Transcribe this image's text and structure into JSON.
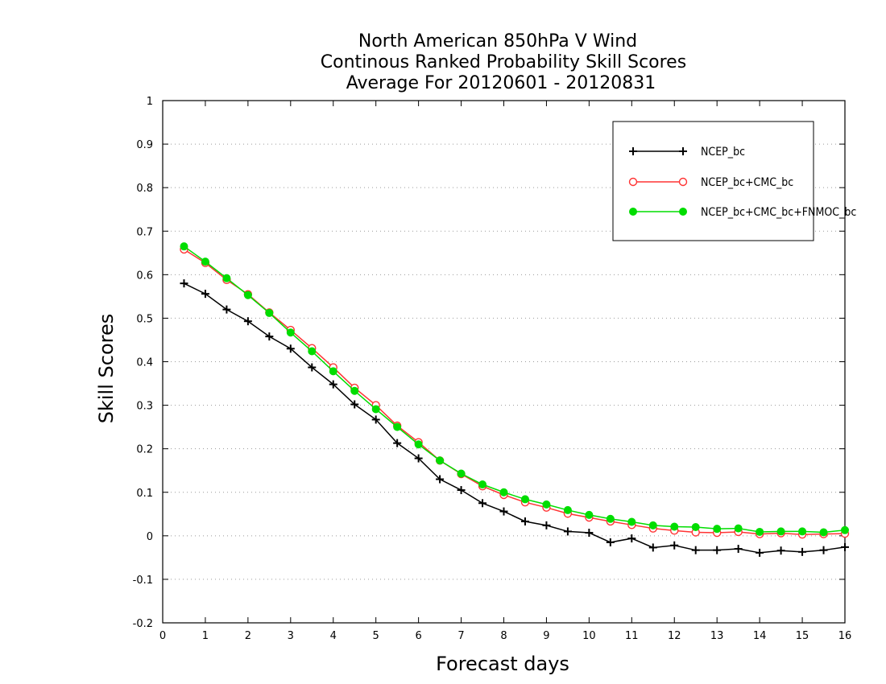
{
  "chart_data": {
    "type": "line",
    "title_lines": [
      "North American 850hPa V Wind",
      "Continous Ranked Probability Skill Scores",
      "Average For 20120601 - 20120831"
    ],
    "xlabel": "Forecast days",
    "ylabel": "Skill Scores",
    "xlim": [
      0,
      16
    ],
    "ylim": [
      -0.2,
      1
    ],
    "x_ticks": [
      "0",
      "1",
      "2",
      "3",
      "4",
      "5",
      "6",
      "7",
      "8",
      "9",
      "10",
      "11",
      "12",
      "13",
      "14",
      "15",
      "16"
    ],
    "y_ticks": [
      "-0.2",
      "-0.1",
      "0",
      "0.1",
      "0.2",
      "0.3",
      "0.4",
      "0.5",
      "0.6",
      "0.7",
      "0.8",
      "0.9",
      "1"
    ],
    "grid": "dotted horizontal",
    "legend_position": "top-right",
    "x": [
      0.5,
      1,
      1.5,
      2,
      2.5,
      3,
      3.5,
      4,
      4.5,
      5,
      5.5,
      6,
      6.5,
      7,
      7.5,
      8,
      8.5,
      9,
      9.5,
      10,
      10.5,
      11,
      11.5,
      12,
      12.5,
      13,
      13.5,
      14,
      14.5,
      15,
      15.5,
      16
    ],
    "series": [
      {
        "name": "NCEP_bc",
        "color": "#000000",
        "marker": "plus",
        "values": [
          0.58,
          0.556,
          0.52,
          0.493,
          0.458,
          0.43,
          0.387,
          0.348,
          0.302,
          0.267,
          0.213,
          0.178,
          0.13,
          0.105,
          0.075,
          0.056,
          0.033,
          0.024,
          0.01,
          0.007,
          -0.015,
          -0.006,
          -0.027,
          -0.022,
          -0.033,
          -0.033,
          -0.03,
          -0.039,
          -0.034,
          -0.037,
          -0.033,
          -0.026
        ]
      },
      {
        "name": "NCEP_bc+CMC_bc",
        "color": "#ff3333",
        "marker": "open-circle",
        "values": [
          0.658,
          0.627,
          0.588,
          0.555,
          0.513,
          0.473,
          0.431,
          0.387,
          0.34,
          0.3,
          0.253,
          0.215,
          0.173,
          0.142,
          0.114,
          0.094,
          0.077,
          0.065,
          0.051,
          0.042,
          0.033,
          0.025,
          0.017,
          0.012,
          0.008,
          0.007,
          0.009,
          0.004,
          0.006,
          0.003,
          0.004,
          0.005
        ]
      },
      {
        "name": "NCEP_bc+CMC_bc+FNMOC_bc",
        "color": "#00dd00",
        "marker": "filled-circle",
        "values": [
          0.665,
          0.63,
          0.592,
          0.553,
          0.512,
          0.467,
          0.424,
          0.378,
          0.333,
          0.291,
          0.25,
          0.21,
          0.173,
          0.143,
          0.118,
          0.1,
          0.084,
          0.072,
          0.059,
          0.048,
          0.039,
          0.032,
          0.024,
          0.021,
          0.02,
          0.016,
          0.017,
          0.009,
          0.01,
          0.01,
          0.008,
          0.013
        ]
      }
    ]
  }
}
